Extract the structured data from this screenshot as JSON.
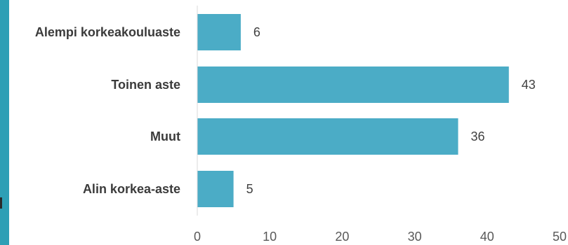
{
  "colors": {
    "bar": "#4BACC6",
    "accent": "#2E9FB5",
    "axis": "#d9d9d9"
  },
  "chart_data": {
    "type": "bar",
    "orientation": "horizontal",
    "categories": [
      "Alempi korkeakouluaste",
      "Toinen aste",
      "Muut",
      "Alin korkea-aste"
    ],
    "values": [
      6,
      43,
      36,
      5
    ],
    "data_labels": [
      "6",
      "43",
      "36",
      "5"
    ],
    "xlim": [
      0,
      50
    ],
    "x_ticks": [
      0,
      10,
      20,
      30,
      40,
      50
    ],
    "grid": false,
    "legend": "none"
  }
}
